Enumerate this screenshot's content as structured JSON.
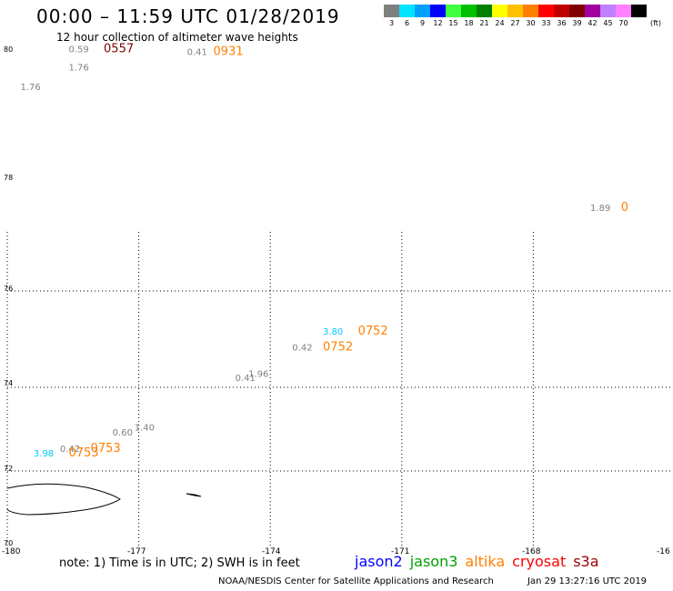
{
  "header": {
    "title": "00:00 – 11:59 UTC 01/28/2019",
    "subtitle": "12 hour collection of altimeter wave heights"
  },
  "legend": {
    "unit": "(ft)",
    "items": [
      {
        "label": "3",
        "color": "#7f7f7f"
      },
      {
        "label": "6",
        "color": "#00e5ff"
      },
      {
        "label": "9",
        "color": "#00a0ff"
      },
      {
        "label": "12",
        "color": "#0000ff"
      },
      {
        "label": "15",
        "color": "#40ff40"
      },
      {
        "label": "18",
        "color": "#00c000"
      },
      {
        "label": "21",
        "color": "#008000"
      },
      {
        "label": "24",
        "color": "#ffff00"
      },
      {
        "label": "27",
        "color": "#ffc000"
      },
      {
        "label": "30",
        "color": "#ff8000"
      },
      {
        "label": "33",
        "color": "#ff0000"
      },
      {
        "label": "36",
        "color": "#c00000"
      },
      {
        "label": "39",
        "color": "#800000"
      },
      {
        "label": "42",
        "color": "#a000a0"
      },
      {
        "label": "45",
        "color": "#c080ff"
      },
      {
        "label": "70",
        "color": "#ff80ff"
      },
      {
        "label": "",
        "color": "#000000"
      }
    ]
  },
  "map": {
    "lon_ticks": [
      "-180",
      "-177",
      "-174",
      "-171",
      "-168",
      "-16"
    ],
    "lat_ticks": [
      "80",
      "78",
      "76",
      "74",
      "72",
      "70"
    ],
    "observations": [
      {
        "text": "0.59",
        "color": "#808080",
        "lon": -178.6,
        "lat": 79.96
      },
      {
        "text": "0557",
        "color": "#800000",
        "lon": -177.8,
        "lat": 79.96
      },
      {
        "text": "1.76",
        "color": "#808080",
        "lon": -178.6,
        "lat": 79.63
      },
      {
        "text": "0.41",
        "color": "#808080",
        "lon": -175.9,
        "lat": 79.91
      },
      {
        "text": "0931",
        "color": "#ff8000",
        "lon": -175.3,
        "lat": 79.91
      },
      {
        "text": "1.76",
        "color": "#808080",
        "lon": -179.7,
        "lat": 79.27
      },
      {
        "text": "1.89",
        "color": "#808080",
        "lon": -166.7,
        "lat": 77.07
      },
      {
        "text": "0",
        "color": "#ff8000",
        "lon": -166.0,
        "lat": 77.07
      },
      {
        "text": "3.80",
        "color": "#00c8ff",
        "lon": -172.8,
        "lat": 74.82
      },
      {
        "text": "0752",
        "color": "#ff8000",
        "lon": -172.0,
        "lat": 74.82
      },
      {
        "text": "0.42",
        "color": "#808080",
        "lon": -173.5,
        "lat": 74.53
      },
      {
        "text": "0752",
        "color": "#ff8000",
        "lon": -172.8,
        "lat": 74.53
      },
      {
        "text": "1.96",
        "color": "#808080",
        "lon": -174.5,
        "lat": 74.05
      },
      {
        "text": "0.41",
        "color": "#808080",
        "lon": -174.8,
        "lat": 73.97
      },
      {
        "text": "1.40",
        "color": "#808080",
        "lon": -177.1,
        "lat": 73.07
      },
      {
        "text": "0.60",
        "color": "#808080",
        "lon": -177.6,
        "lat": 72.98
      },
      {
        "text": "0.42",
        "color": "#808080",
        "lon": -178.8,
        "lat": 72.68
      },
      {
        "text": "0753",
        "color": "#ff8000",
        "lon": -178.1,
        "lat": 72.68
      },
      {
        "text": "3.98",
        "color": "#00c8ff",
        "lon": -179.4,
        "lat": 72.6
      },
      {
        "text": "0753",
        "color": "#ff8000",
        "lon": -178.6,
        "lat": 72.6
      }
    ]
  },
  "footer": {
    "note": "note: 1) Time is in UTC; 2) SWH is in feet",
    "satellites": [
      {
        "name": "jason2",
        "color": "#0000ff"
      },
      {
        "name": "jason3",
        "color": "#00a000"
      },
      {
        "name": "altika",
        "color": "#ff8000"
      },
      {
        "name": "cryosat",
        "color": "#ff0000"
      },
      {
        "name": "s3a",
        "color": "#a00000"
      }
    ],
    "credit": "NOAA/NESDIS Center for Satellite Applications and Research",
    "timestamp": "Jan 29 13:27:16 UTC 2019"
  }
}
